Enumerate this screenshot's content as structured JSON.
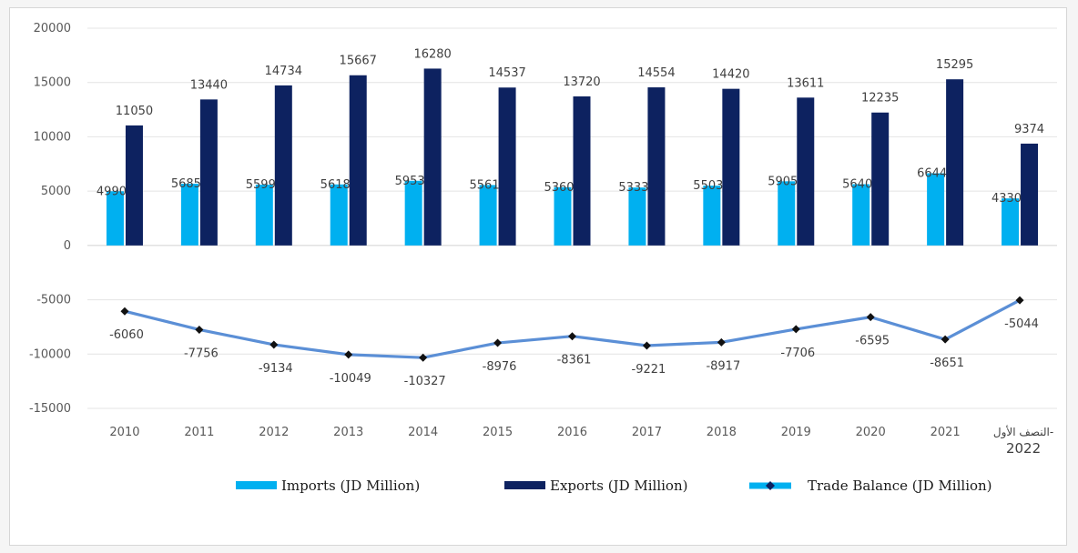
{
  "chart_data": {
    "type": "bar",
    "categories": [
      "2010",
      "2011",
      "2012",
      "2013",
      "2014",
      "2015",
      "2016",
      "2017",
      "2018",
      "2019",
      "2020",
      "2021",
      "النصف الأول-\n2022"
    ],
    "series": [
      {
        "name": "Imports (JD Million)",
        "type": "bar",
        "color": "#00b0f0",
        "values": [
          4990,
          5685,
          5599,
          5618,
          5953,
          5561,
          5360,
          5333,
          5503,
          5905,
          5640,
          6644,
          4330
        ]
      },
      {
        "name": "Exports (JD Million)",
        "type": "bar",
        "color": "#0d2260",
        "values": [
          11050,
          13440,
          14734,
          15667,
          16280,
          14537,
          13720,
          14554,
          14420,
          13611,
          12235,
          15295,
          9374
        ]
      },
      {
        "name": "Trade Balance (JD Million)",
        "type": "line",
        "color": "#5b8fd6",
        "marker_color": "#111111",
        "values": [
          -6060,
          -7756,
          -9134,
          -10049,
          -10327,
          -8976,
          -8361,
          -9221,
          -8917,
          -7706,
          -6595,
          -8651,
          -5044
        ]
      }
    ],
    "title": "",
    "xlabel": "",
    "ylabel": "",
    "ylim": [
      -15000,
      20000
    ],
    "yticks": [
      20000,
      15000,
      10000,
      5000,
      0,
      -5000,
      -10000,
      -15000
    ],
    "grid": true,
    "legend_position": "bottom"
  }
}
